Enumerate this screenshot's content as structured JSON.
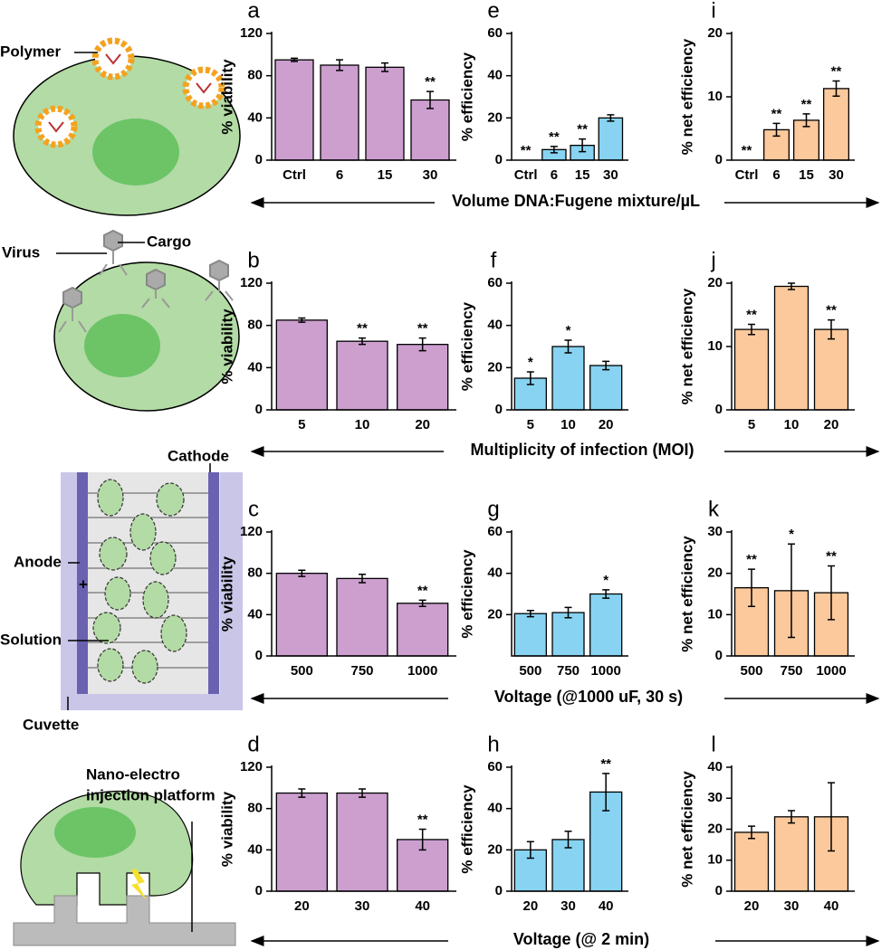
{
  "chart_data": [
    {
      "type": "bar",
      "title": "a",
      "ylabel": "% viability",
      "categories": [
        "Ctrl",
        "6",
        "15",
        "30"
      ],
      "values": [
        95,
        90,
        88,
        57
      ],
      "errors": [
        1.5,
        5,
        4,
        8
      ],
      "annotations": [
        null,
        null,
        null,
        "**"
      ],
      "color": "#cc9fcf",
      "ylim": [
        0,
        120
      ],
      "yticks": [
        0,
        40,
        80,
        120
      ]
    },
    {
      "type": "bar",
      "title": "e",
      "ylabel": "% efficiency",
      "categories": [
        "Ctrl",
        "6",
        "15",
        "30"
      ],
      "values": [
        0,
        5,
        7,
        20
      ],
      "errors": [
        null,
        1.5,
        3,
        1.5
      ],
      "annotations": [
        "**",
        "**",
        "**",
        null
      ],
      "color": "#87d3f1",
      "ylim": [
        0,
        60
      ],
      "yticks": [
        0,
        20,
        40,
        60
      ]
    },
    {
      "type": "bar",
      "title": "i",
      "ylabel": "% net efficiency",
      "categories": [
        "Ctrl",
        "6",
        "15",
        "30"
      ],
      "values": [
        0,
        4.8,
        6.3,
        11.3
      ],
      "errors": [
        null,
        1,
        1,
        1.2
      ],
      "annotations": [
        "**",
        "**",
        "**",
        "**"
      ],
      "color": "#fbc99b",
      "ylim": [
        0,
        20
      ],
      "yticks": [
        0,
        10,
        20
      ]
    },
    {
      "type": "bar",
      "title": "b",
      "ylabel": "% viability",
      "categories": [
        "5",
        "10",
        "20"
      ],
      "values": [
        85,
        65,
        62
      ],
      "errors": [
        2,
        3,
        6
      ],
      "annotations": [
        null,
        "**",
        "**"
      ],
      "color": "#cc9fcf",
      "ylim": [
        0,
        120
      ],
      "yticks": [
        0,
        40,
        80,
        120
      ]
    },
    {
      "type": "bar",
      "title": "f",
      "ylabel": "% efficiency",
      "categories": [
        "5",
        "10",
        "20"
      ],
      "values": [
        15,
        30,
        21
      ],
      "errors": [
        3,
        3,
        2
      ],
      "annotations": [
        "*",
        "*",
        null
      ],
      "color": "#87d3f1",
      "ylim": [
        0,
        60
      ],
      "yticks": [
        0,
        20,
        40,
        60
      ]
    },
    {
      "type": "bar",
      "title": "j",
      "ylabel": "% net efficiency",
      "categories": [
        "5",
        "10",
        "20"
      ],
      "values": [
        12.7,
        19.5,
        12.7
      ],
      "errors": [
        0.8,
        0.5,
        1.5
      ],
      "annotations": [
        "**",
        null,
        "**"
      ],
      "color": "#fbc99b",
      "ylim": [
        0,
        20
      ],
      "yticks": [
        0,
        10,
        20
      ]
    },
    {
      "type": "bar",
      "title": "c",
      "ylabel": "% viability",
      "categories": [
        "500",
        "750",
        "1000"
      ],
      "values": [
        80,
        75,
        51
      ],
      "errors": [
        3,
        4,
        3
      ],
      "annotations": [
        null,
        null,
        "**"
      ],
      "color": "#cc9fcf",
      "ylim": [
        0,
        120
      ],
      "yticks": [
        0,
        40,
        80,
        120
      ]
    },
    {
      "type": "bar",
      "title": "g",
      "ylabel": "% efficiency",
      "categories": [
        "500",
        "750",
        "1000"
      ],
      "values": [
        20.5,
        21,
        30
      ],
      "errors": [
        1.5,
        2.5,
        2
      ],
      "annotations": [
        null,
        null,
        "*"
      ],
      "color": "#87d3f1",
      "ylim": [
        0,
        60
      ],
      "yticks": [
        20,
        40,
        60
      ]
    },
    {
      "type": "bar",
      "title": "k",
      "ylabel": "% net efficiency",
      "categories": [
        "500",
        "750",
        "1000"
      ],
      "values": [
        16.5,
        15.8,
        15.3
      ],
      "errors": [
        4.5,
        11.3,
        6.5
      ],
      "annotations": [
        "**",
        "*",
        "**"
      ],
      "color": "#fbc99b",
      "ylim": [
        0,
        30
      ],
      "yticks": [
        0,
        10,
        20,
        30
      ]
    },
    {
      "type": "bar",
      "title": "d",
      "ylabel": "% viability",
      "categories": [
        "20",
        "30",
        "40"
      ],
      "values": [
        95,
        95,
        50
      ],
      "errors": [
        4,
        4,
        10
      ],
      "annotations": [
        null,
        null,
        "**"
      ],
      "color": "#cc9fcf",
      "ylim": [
        0,
        120
      ],
      "yticks": [
        0,
        40,
        80,
        120
      ]
    },
    {
      "type": "bar",
      "title": "h",
      "ylabel": "% efficiency",
      "categories": [
        "20",
        "30",
        "40"
      ],
      "values": [
        20,
        25,
        48
      ],
      "errors": [
        4,
        4,
        9
      ],
      "annotations": [
        null,
        null,
        "**"
      ],
      "color": "#87d3f1",
      "ylim": [
        0,
        60
      ],
      "yticks": [
        0,
        20,
        40,
        60
      ]
    },
    {
      "type": "bar",
      "title": "l",
      "ylabel": "% net efficiency",
      "categories": [
        "20",
        "30",
        "40"
      ],
      "values": [
        19,
        24,
        24
      ],
      "errors": [
        2,
        2,
        11
      ],
      "annotations": [
        null,
        null,
        null
      ],
      "color": "#fbc99b",
      "ylim": [
        0,
        40
      ],
      "yticks": [
        0,
        10,
        20,
        30,
        40
      ]
    }
  ],
  "row_labels": [
    "Volume DNA:Fugene mixture/µL",
    "Multiplicity of infection (MOI)",
    "Voltage (@1000 uF, 30 s)",
    "Voltage (@ 2 min)"
  ],
  "diagram": {
    "polymer": "Polymer",
    "virus": "Virus",
    "cargo": "Cargo",
    "cathode": "Cathode",
    "anode": "Anode",
    "plus": "+",
    "minus": "-",
    "solution": "Solution",
    "cuvette": "Cuvette",
    "platform_line1": "Nano-electro",
    "platform_line2": "injection platform"
  }
}
